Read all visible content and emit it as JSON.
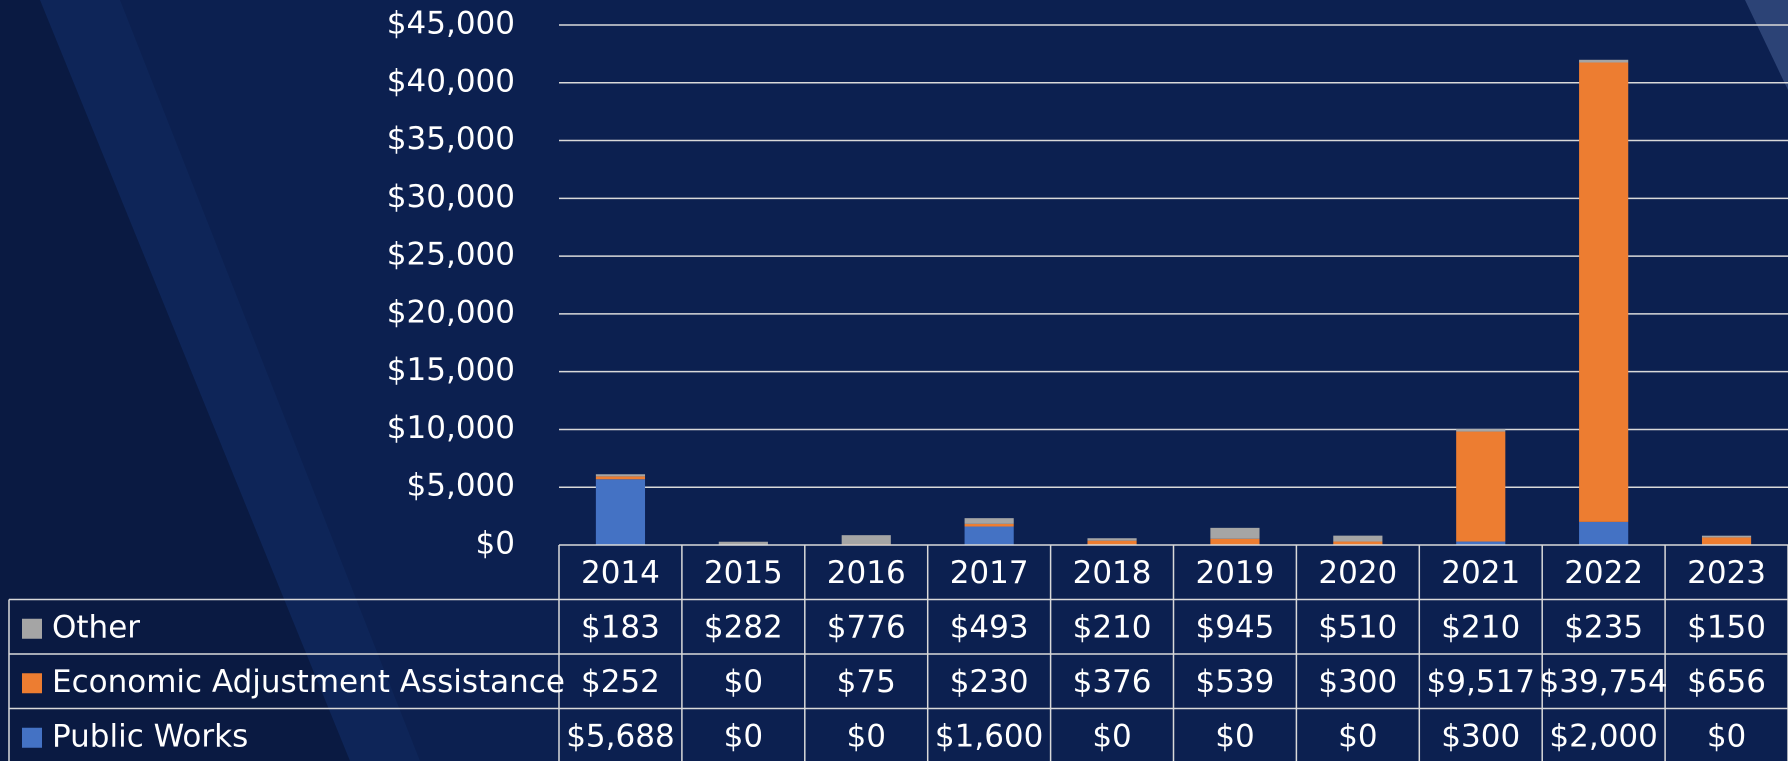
{
  "chart_data": {
    "type": "stacked_bar",
    "categories": [
      "2014",
      "2015",
      "2016",
      "2017",
      "2018",
      "2019",
      "2020",
      "2021",
      "2022",
      "2023"
    ],
    "series": [
      {
        "name": "Public Works",
        "color": "#4472c4",
        "values": [
          5688,
          0,
          0,
          1600,
          0,
          0,
          0,
          300,
          2000,
          0
        ],
        "value_labels": [
          "$5,688",
          "$0",
          "$0",
          "$1,600",
          "$0",
          "$0",
          "$0",
          "$300",
          "$2,000",
          "$0"
        ]
      },
      {
        "name": "Economic Adjustment Assistance",
        "color": "#ed7d31",
        "values": [
          252,
          0,
          75,
          230,
          376,
          539,
          300,
          9517,
          39754,
          656
        ],
        "value_labels": [
          "$252",
          "$0",
          "$75",
          "$230",
          "$376",
          "$539",
          "$300",
          "$9,517",
          "$39,754",
          "$656"
        ]
      },
      {
        "name": "Other",
        "color": "#a5a5a5",
        "values": [
          183,
          282,
          776,
          493,
          210,
          945,
          510,
          210,
          235,
          150
        ],
        "value_labels": [
          "$183",
          "$282",
          "$776",
          "$493",
          "$210",
          "$945",
          "$510",
          "$210",
          "$235",
          "$150"
        ]
      }
    ],
    "ylim": [
      0,
      45000
    ],
    "yticks": [
      {
        "value": 0,
        "label": "$0"
      },
      {
        "value": 5000,
        "label": "$5,000"
      },
      {
        "value": 10000,
        "label": "$10,000"
      },
      {
        "value": 15000,
        "label": "$15,000"
      },
      {
        "value": 20000,
        "label": "$20,000"
      },
      {
        "value": 25000,
        "label": "$25,000"
      },
      {
        "value": 30000,
        "label": "$30,000"
      },
      {
        "value": 35000,
        "label": "$35,000"
      },
      {
        "value": 40000,
        "label": "$40,000"
      },
      {
        "value": 45000,
        "label": "$45,000"
      }
    ],
    "grid": true
  }
}
